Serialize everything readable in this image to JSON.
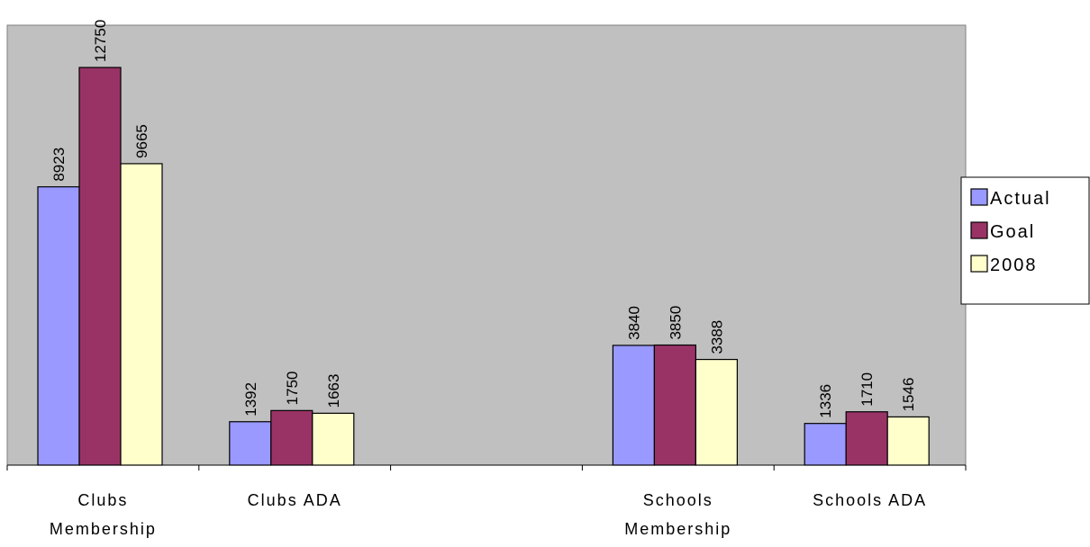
{
  "chart_data": {
    "type": "bar",
    "categories": [
      [
        "Clubs",
        "Membership"
      ],
      [
        "Clubs ADA"
      ],
      [],
      [
        "Schools",
        "Membership"
      ],
      [
        "Schools ADA"
      ]
    ],
    "series": [
      {
        "name": "Actual",
        "color": "#9999FF",
        "values": [
          8923,
          1392,
          null,
          3840,
          1336
        ]
      },
      {
        "name": "Goal",
        "color": "#993366",
        "values": [
          12750,
          1750,
          null,
          3850,
          1710
        ]
      },
      {
        "name": "2008",
        "color": "#FFFFCC",
        "values": [
          9665,
          1663,
          null,
          3388,
          1546
        ]
      }
    ],
    "ylim": [
      0,
      14000
    ],
    "grid": false,
    "plot_background": "#C0C0C0",
    "legend_position": "right",
    "data_labels": true
  }
}
